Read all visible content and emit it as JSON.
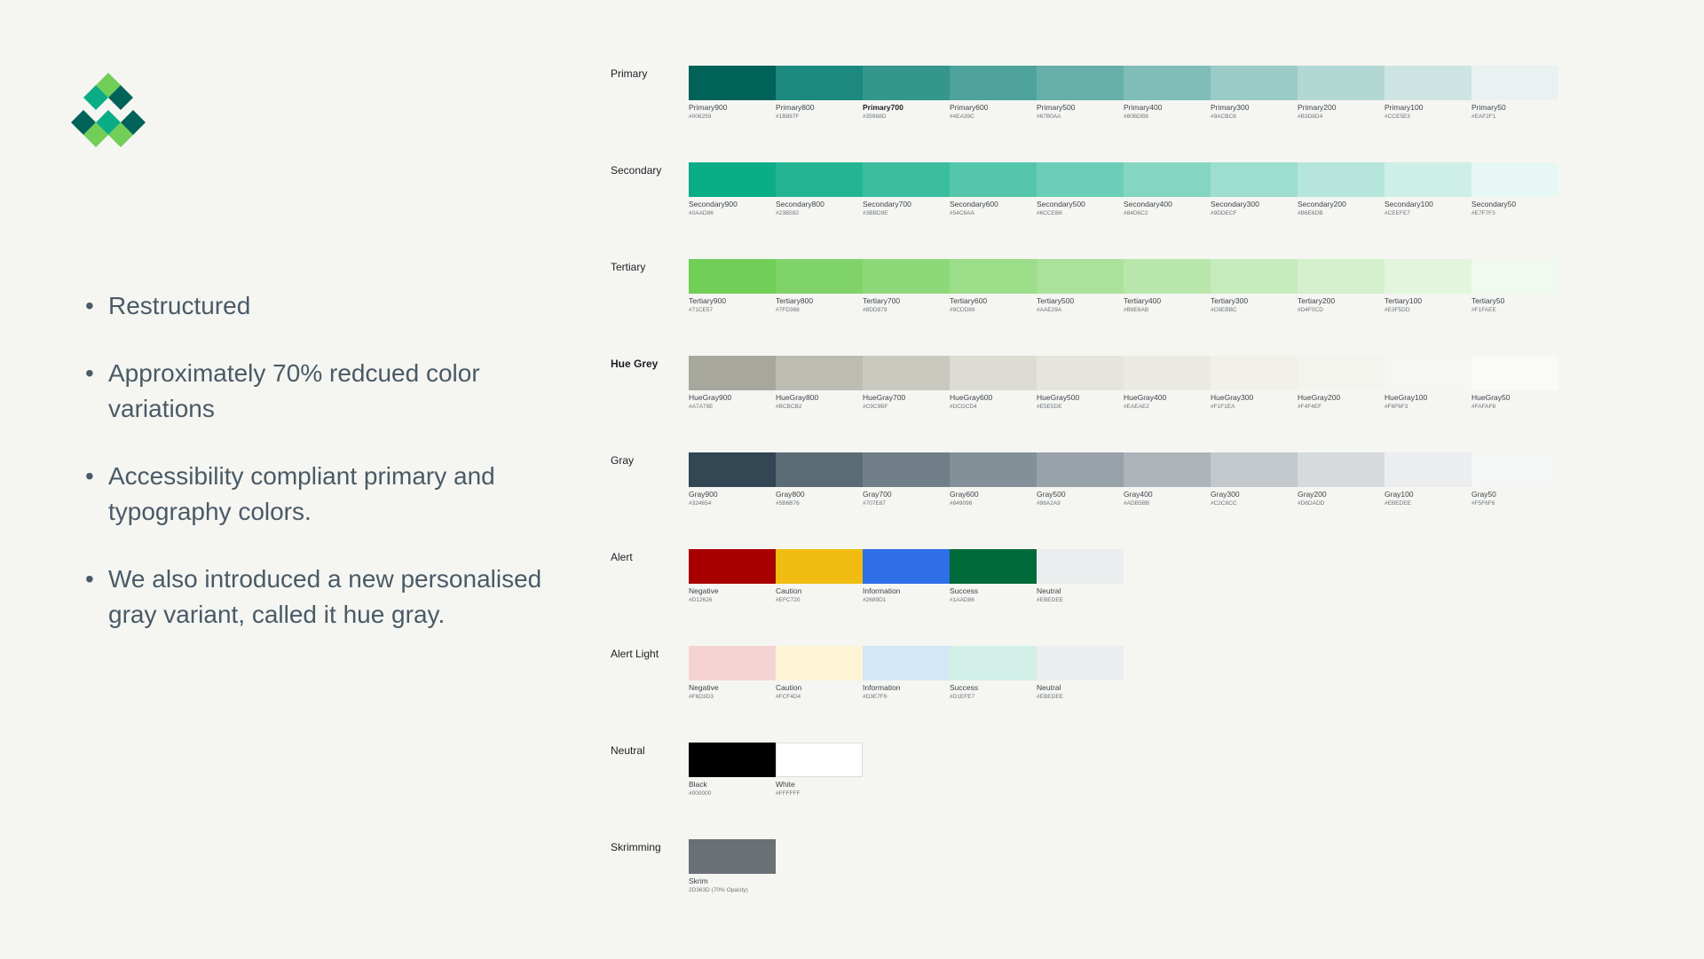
{
  "brand": {
    "logo_colors": [
      "#71CE57",
      "#0AAD86",
      "#1B897F",
      "#006259"
    ]
  },
  "bullets": [
    "Restructured",
    "Approximately 70% redcued color variations",
    "Accessibility compliant primary and typography colors.",
    "We also introduced a new personalised gray variant, called it hue gray."
  ],
  "palette": [
    {
      "label": "Primary",
      "label_bold": false,
      "swatches": [
        {
          "name": "Primary900",
          "hex": "#006259"
        },
        {
          "name": "Primary800",
          "hex": "#1B897F"
        },
        {
          "name": "Primary700",
          "hex": "#35968D",
          "emphasis": true
        },
        {
          "name": "Primary600",
          "hex": "#4EA39C"
        },
        {
          "name": "Primary500",
          "hex": "#67B0AA"
        },
        {
          "name": "Primary400",
          "hex": "#80BDB8"
        },
        {
          "name": "Primary300",
          "hex": "#9ACBC6"
        },
        {
          "name": "Primary200",
          "hex": "#B3D8D4"
        },
        {
          "name": "Primary100",
          "hex": "#CCE5E3"
        },
        {
          "name": "Primary50",
          "hex": "#EAF2F1"
        }
      ]
    },
    {
      "label": "Secondary",
      "label_bold": false,
      "swatches": [
        {
          "name": "Secondary900",
          "hex": "#0AAD86"
        },
        {
          "name": "Secondary800",
          "hex": "#23B592"
        },
        {
          "name": "Secondary700",
          "hex": "#3BBD9E"
        },
        {
          "name": "Secondary600",
          "hex": "#54C6AA"
        },
        {
          "name": "Secondary500",
          "hex": "#6CCEB6"
        },
        {
          "name": "Secondary400",
          "hex": "#84D6C2"
        },
        {
          "name": "Secondary300",
          "hex": "#9DDECF"
        },
        {
          "name": "Secondary200",
          "hex": "#B6E6DB"
        },
        {
          "name": "Secondary100",
          "hex": "#CEEFE7"
        },
        {
          "name": "Secondary50",
          "hex": "#E7F7F3"
        }
      ]
    },
    {
      "label": "Tertiary",
      "label_bold": false,
      "swatches": [
        {
          "name": "Tertiary900",
          "hex": "#71CE57"
        },
        {
          "name": "Tertiary800",
          "hex": "#7FD368"
        },
        {
          "name": "Tertiary700",
          "hex": "#8DD879"
        },
        {
          "name": "Tertiary600",
          "hex": "#9CDD89"
        },
        {
          "name": "Tertiary500",
          "hex": "#AAE29A"
        },
        {
          "name": "Tertiary400",
          "hex": "#B8E6AB"
        },
        {
          "name": "Tertiary300",
          "hex": "#C6EBBC"
        },
        {
          "name": "Tertiary200",
          "hex": "#D4F0CD"
        },
        {
          "name": "Tertiary100",
          "hex": "#E3F5DD"
        },
        {
          "name": "Tertiary50",
          "hex": "#F1FAEE"
        }
      ]
    },
    {
      "label": "Hue Grey",
      "label_bold": true,
      "swatches": [
        {
          "name": "HueGray900",
          "hex": "#A7A79E"
        },
        {
          "name": "HueGray800",
          "hex": "#BCBCB2"
        },
        {
          "name": "HueGray700",
          "hex": "#C9C9BF"
        },
        {
          "name": "HueGray600",
          "hex": "#DCDCD4"
        },
        {
          "name": "HueGray500",
          "hex": "#E5E5DE"
        },
        {
          "name": "HueGray400",
          "hex": "#EAEAE2"
        },
        {
          "name": "HueGray300",
          "hex": "#F1F1EA"
        },
        {
          "name": "HueGray200",
          "hex": "#F4F4EF"
        },
        {
          "name": "HueGray100",
          "hex": "#F6F6F3"
        },
        {
          "name": "HueGray50",
          "hex": "#FAFAF8"
        }
      ]
    },
    {
      "label": "Gray",
      "label_bold": false,
      "swatches": [
        {
          "name": "Gray900",
          "hex": "#324654"
        },
        {
          "name": "Gray800",
          "hex": "#5B6B76"
        },
        {
          "name": "Gray700",
          "hex": "#707E87"
        },
        {
          "name": "Gray600",
          "hex": "#849098"
        },
        {
          "name": "Gray500",
          "hex": "#98A2A9"
        },
        {
          "name": "Gray400",
          "hex": "#ADB5BB"
        },
        {
          "name": "Gray300",
          "hex": "#C2C8CC"
        },
        {
          "name": "Gray200",
          "hex": "#D6DADD"
        },
        {
          "name": "Gray100",
          "hex": "#EBEDEE"
        },
        {
          "name": "Gray50",
          "hex": "#F5F6F6"
        }
      ]
    },
    {
      "label": "Alert",
      "label_bold": false,
      "swatches": [
        {
          "name": "Negative",
          "hex": "#D12626",
          "color": "#A80000"
        },
        {
          "name": "Caution",
          "hex": "#EFC720",
          "color": "#F0BC12"
        },
        {
          "name": "Information",
          "hex": "#2689D1",
          "color": "#2F6FE8"
        },
        {
          "name": "Success",
          "hex": "#1AAD86",
          "color": "#006A3A"
        },
        {
          "name": "Neutral",
          "hex": "#EBEDEE"
        }
      ]
    },
    {
      "label": "Alert Light",
      "label_bold": false,
      "swatches": [
        {
          "name": "Negative",
          "hex": "#F6D3D3"
        },
        {
          "name": "Caution",
          "hex": "#FCF4D4"
        },
        {
          "name": "Information",
          "hex": "#D3E7F6"
        },
        {
          "name": "Success",
          "hex": "#D1EFE7"
        },
        {
          "name": "Neutral",
          "hex": "#EBEDEE"
        }
      ]
    },
    {
      "label": "Neutral",
      "label_bold": false,
      "swatches": [
        {
          "name": "Black",
          "hex": "#000000"
        },
        {
          "name": "White",
          "hex": "#FFFFFF",
          "bordered": true
        }
      ]
    },
    {
      "label": "Skrimming",
      "label_bold": false,
      "swatches": [
        {
          "name": "Skrim",
          "hex": "2D363D (70% Opacity)",
          "color": "#6A7075"
        }
      ]
    }
  ]
}
